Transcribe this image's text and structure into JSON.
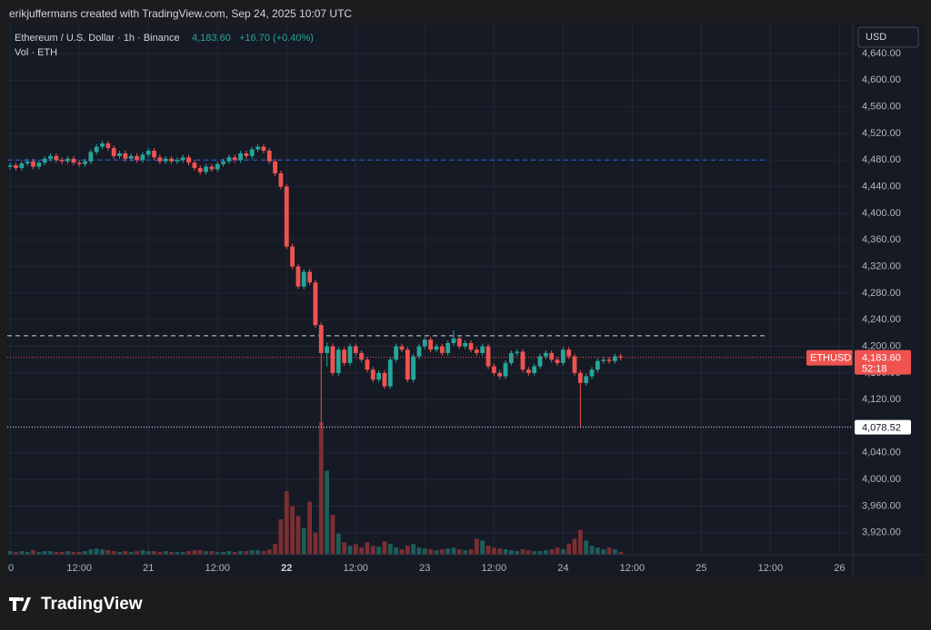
{
  "header": "erikjuffermans created with TradingView.com, Sep 24, 2025 10:07 UTC",
  "brand": "TradingView",
  "chart_data": {
    "type": "candlestick",
    "title": "Ethereum / U.S. Dollar · 1h · Binance",
    "last": "4,183.60",
    "change": "+16.70 (+0.40%)",
    "volume_title": "Vol · ETH",
    "currency": "USD",
    "up_color": "#26a69a",
    "down_color": "#ef5350",
    "up_volume_color": "#1d5e59",
    "down_volume_color": "#7b2f33",
    "grid": true,
    "xlim": [
      -0.5,
      146.3
    ],
    "ylim": [
      3887,
      4685
    ],
    "xticks": [
      0,
      {
        "value": 12,
        "label": "12:00"
      },
      21,
      {
        "value": 36,
        "label": "12:00"
      },
      22,
      {
        "value": 60,
        "label": "12:00"
      },
      23,
      {
        "value": 84,
        "label": "12:00"
      },
      24,
      {
        "value": 108,
        "label": "12:00"
      },
      25,
      {
        "value": 132,
        "label": "12:00"
      },
      26
    ],
    "xtick_positions": [
      0,
      12,
      24,
      36,
      48,
      60,
      72,
      84,
      96,
      108,
      120,
      132,
      144
    ],
    "yticks": [
      {
        "value": 4640,
        "label": "4,640.00"
      },
      {
        "value": 4600,
        "label": "4,600.00"
      },
      {
        "value": 4560,
        "label": "4,560.00"
      },
      {
        "value": 4520,
        "label": "4,520.00"
      },
      {
        "value": 4480,
        "label": "4,480.00"
      },
      {
        "value": 4440,
        "label": "4,440.00"
      },
      {
        "value": 4400,
        "label": "4,400.00"
      },
      {
        "value": 4360,
        "label": "4,360.00"
      },
      {
        "value": 4320,
        "label": "4,320.00"
      },
      {
        "value": 4280,
        "label": "4,280.00"
      },
      {
        "value": 4240,
        "label": "4,240.00"
      },
      {
        "value": 4200,
        "label": "4,200.00"
      },
      {
        "value": 4160,
        "label": "4,160.00"
      },
      {
        "value": 4120,
        "label": "4,120.00"
      },
      {
        "value": 4080,
        "label": "4,080.00"
      },
      {
        "value": 4040,
        "label": "4,040.00"
      },
      {
        "value": 4000,
        "label": "4,000.00"
      },
      {
        "value": 3960,
        "label": "3,960.00"
      },
      {
        "value": 3920,
        "label": "3,920.00"
      }
    ],
    "lines": [
      {
        "value": 4480,
        "color": "#2962ff"
      },
      {
        "value": 4216,
        "color": "#d1d4dc"
      }
    ],
    "last_price": {
      "name": "ETHUSD",
      "value": 4183.6,
      "label": "4,183.60",
      "countdown": "52:18"
    },
    "low_marker": {
      "value": 4078.52,
      "label": "4,078.52"
    },
    "x": [
      0,
      1,
      2,
      3,
      4,
      5,
      6,
      7,
      8,
      9,
      10,
      11,
      12,
      13,
      14,
      15,
      16,
      17,
      18,
      19,
      20,
      21,
      22,
      23,
      24,
      25,
      26,
      27,
      28,
      29,
      30,
      31,
      32,
      33,
      34,
      35,
      36,
      37,
      38,
      39,
      40,
      41,
      42,
      43,
      44,
      45,
      46,
      47,
      48,
      49,
      50,
      51,
      52,
      53,
      54,
      55,
      56,
      57,
      58,
      59,
      60,
      61,
      62,
      63,
      64,
      65,
      66,
      67,
      68,
      69,
      70,
      71,
      72,
      73,
      74,
      75,
      76,
      77,
      78,
      79,
      80,
      81,
      82,
      83,
      84,
      85,
      86,
      87,
      88,
      89,
      90,
      91,
      92,
      93,
      94,
      95,
      96,
      97,
      98,
      99,
      100,
      101,
      102,
      103,
      104,
      105,
      106
    ],
    "candles": [
      [
        4470,
        4476,
        4466,
        4472,
        4
      ],
      [
        4472,
        4476,
        4464,
        4468,
        3
      ],
      [
        4468,
        4479,
        4464,
        4475,
        4
      ],
      [
        4475,
        4482,
        4471,
        4478,
        3
      ],
      [
        4478,
        4482,
        4466,
        4470,
        5
      ],
      [
        4470,
        4480,
        4466,
        4476,
        3
      ],
      [
        4476,
        4486,
        4472,
        4482,
        4
      ],
      [
        4482,
        4490,
        4478,
        4486,
        4
      ],
      [
        4486,
        4490,
        4476,
        4480,
        3
      ],
      [
        4480,
        4484,
        4474,
        4478,
        3
      ],
      [
        4478,
        4486,
        4474,
        4482,
        4
      ],
      [
        4482,
        4486,
        4472,
        4476,
        3
      ],
      [
        4476,
        4480,
        4470,
        4474,
        3
      ],
      [
        4474,
        4482,
        4470,
        4478,
        4
      ],
      [
        4478,
        4496,
        4474,
        4492,
        6
      ],
      [
        4492,
        4504,
        4488,
        4500,
        7
      ],
      [
        4500,
        4509,
        4496,
        4505,
        6
      ],
      [
        4505,
        4509,
        4494,
        4498,
        5
      ],
      [
        4498,
        4502,
        4482,
        4486,
        4
      ],
      [
        4486,
        4494,
        4482,
        4490,
        3
      ],
      [
        4490,
        4494,
        4478,
        4482,
        4
      ],
      [
        4482,
        4490,
        4478,
        4486,
        3
      ],
      [
        4486,
        4490,
        4476,
        4480,
        4
      ],
      [
        4480,
        4492,
        4476,
        4488,
        5
      ],
      [
        4488,
        4498,
        4484,
        4494,
        4
      ],
      [
        4494,
        4498,
        4480,
        4484,
        4
      ],
      [
        4484,
        4488,
        4474,
        4478,
        3
      ],
      [
        4478,
        4486,
        4474,
        4482,
        4
      ],
      [
        4482,
        4486,
        4474,
        4478,
        3
      ],
      [
        4478,
        4484,
        4474,
        4480,
        3
      ],
      [
        4480,
        4488,
        4476,
        4484,
        3
      ],
      [
        4484,
        4488,
        4472,
        4476,
        4
      ],
      [
        4476,
        4480,
        4464,
        4468,
        5
      ],
      [
        4468,
        4472,
        4458,
        4462,
        5
      ],
      [
        4462,
        4474,
        4458,
        4470,
        4
      ],
      [
        4470,
        4474,
        4462,
        4466,
        4
      ],
      [
        4466,
        4478,
        4462,
        4474,
        3
      ],
      [
        4474,
        4482,
        4470,
        4478,
        3
      ],
      [
        4478,
        4488,
        4474,
        4484,
        4
      ],
      [
        4484,
        4488,
        4476,
        4480,
        3
      ],
      [
        4480,
        4494,
        4476,
        4490,
        4
      ],
      [
        4490,
        4494,
        4482,
        4486,
        4
      ],
      [
        4486,
        4500,
        4482,
        4496,
        5
      ],
      [
        4496,
        4504,
        4492,
        4500,
        5
      ],
      [
        4500,
        4504,
        4490,
        4494,
        4
      ],
      [
        4494,
        4498,
        4474,
        4478,
        6
      ],
      [
        4478,
        4482,
        4456,
        4460,
        12
      ],
      [
        4460,
        4464,
        4436,
        4440,
        40
      ],
      [
        4440,
        4444,
        4346,
        4350,
        72
      ],
      [
        4350,
        4354,
        4316,
        4320,
        55
      ],
      [
        4320,
        4324,
        4286,
        4290,
        44
      ],
      [
        4290,
        4316,
        4286,
        4312,
        30
      ],
      [
        4312,
        4316,
        4292,
        4296,
        60
      ],
      [
        4296,
        4300,
        4228,
        4232,
        25
      ],
      [
        4232,
        4236,
        4080,
        4190,
        150
      ],
      [
        4190,
        4206,
        4170,
        4200,
        95
      ],
      [
        4200,
        4204,
        4156,
        4160,
        45
      ],
      [
        4160,
        4199,
        4156,
        4195,
        24
      ],
      [
        4195,
        4199,
        4171,
        4175,
        14
      ],
      [
        4175,
        4204,
        4171,
        4200,
        10
      ],
      [
        4200,
        4204,
        4186,
        4190,
        12
      ],
      [
        4190,
        4194,
        4176,
        4180,
        8
      ],
      [
        4180,
        4184,
        4161,
        4165,
        14
      ],
      [
        4165,
        4169,
        4146,
        4150,
        10
      ],
      [
        4150,
        4164,
        4146,
        4160,
        9
      ],
      [
        4160,
        4164,
        4136,
        4140,
        15
      ],
      [
        4140,
        4184,
        4136,
        4180,
        12
      ],
      [
        4180,
        4204,
        4176,
        4200,
        8
      ],
      [
        4200,
        4204,
        4191,
        4195,
        6
      ],
      [
        4195,
        4199,
        4146,
        4150,
        10
      ],
      [
        4150,
        4189,
        4146,
        4185,
        12
      ],
      [
        4185,
        4204,
        4181,
        4200,
        8
      ],
      [
        4200,
        4214,
        4196,
        4210,
        7
      ],
      [
        4210,
        4214,
        4191,
        4195,
        6
      ],
      [
        4195,
        4204,
        4191,
        4200,
        5
      ],
      [
        4200,
        4204,
        4186,
        4190,
        6
      ],
      [
        4190,
        4209,
        4186,
        4205,
        7
      ],
      [
        4205,
        4224,
        4201,
        4212,
        8
      ],
      [
        4212,
        4216,
        4196,
        4200,
        6
      ],
      [
        4200,
        4209,
        4196,
        4205,
        5
      ],
      [
        4205,
        4209,
        4191,
        4195,
        6
      ],
      [
        4195,
        4199,
        4186,
        4190,
        18
      ],
      [
        4190,
        4204,
        4186,
        4200,
        16
      ],
      [
        4200,
        4204,
        4166,
        4170,
        10
      ],
      [
        4170,
        4174,
        4156,
        4160,
        8
      ],
      [
        4160,
        4164,
        4151,
        4155,
        7
      ],
      [
        4155,
        4179,
        4151,
        4175,
        6
      ],
      [
        4175,
        4194,
        4171,
        4190,
        5
      ],
      [
        4190,
        4196,
        4186,
        4192,
        4
      ],
      [
        4192,
        4196,
        4161,
        4165,
        6
      ],
      [
        4165,
        4169,
        4156,
        4160,
        5
      ],
      [
        4160,
        4174,
        4156,
        4170,
        4
      ],
      [
        4170,
        4189,
        4166,
        4185,
        4
      ],
      [
        4185,
        4194,
        4181,
        4190,
        5
      ],
      [
        4190,
        4194,
        4176,
        4180,
        6
      ],
      [
        4180,
        4184,
        4171,
        4175,
        8
      ],
      [
        4175,
        4199,
        4171,
        4195,
        6
      ],
      [
        4195,
        4199,
        4181,
        4185,
        12
      ],
      [
        4185,
        4189,
        4156,
        4160,
        18
      ],
      [
        4160,
        4164,
        4078.52,
        4145,
        28
      ],
      [
        4145,
        4159,
        4141,
        4155,
        16
      ],
      [
        4155,
        4169,
        4151,
        4165,
        10
      ],
      [
        4165,
        4182,
        4161,
        4178,
        8
      ],
      [
        4178,
        4184,
        4174,
        4180,
        6
      ],
      [
        4180,
        4184,
        4174,
        4178,
        8
      ],
      [
        4178,
        4189,
        4174,
        4185,
        6
      ],
      [
        4185,
        4189,
        4179,
        4183.6,
        3
      ]
    ]
  }
}
